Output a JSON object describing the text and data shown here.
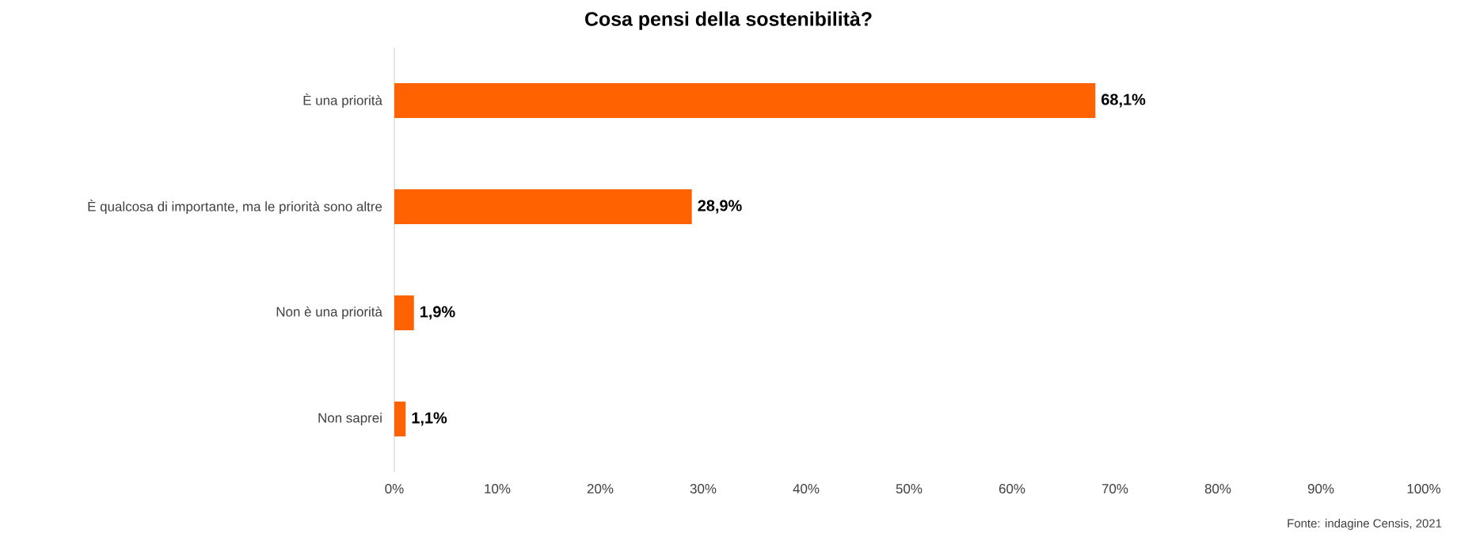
{
  "chart_data": {
    "type": "bar",
    "orientation": "horizontal",
    "title": "Cosa pensi della sostenibilità?",
    "categories": [
      "È una priorità",
      "È qualcosa di importante, ma le priorità sono altre",
      "Non è una priorità",
      "Non saprei"
    ],
    "values": [
      68.1,
      28.9,
      1.9,
      1.1
    ],
    "value_labels": [
      "68,1%",
      "28,9%",
      "1,9%",
      "1,1%"
    ],
    "color": "#ff6200",
    "xlim": [
      0,
      100
    ],
    "xticks": [
      {
        "value": 0,
        "label": "0%"
      },
      {
        "value": 10,
        "label": "10%"
      },
      {
        "value": 20,
        "label": "20%"
      },
      {
        "value": 30,
        "label": "30%"
      },
      {
        "value": 40,
        "label": "40%"
      },
      {
        "value": 50,
        "label": "50%"
      },
      {
        "value": 60,
        "label": "60%"
      },
      {
        "value": 70,
        "label": "70%"
      },
      {
        "value": 80,
        "label": "80%"
      },
      {
        "value": 90,
        "label": "90%"
      },
      {
        "value": 100,
        "label": "100%"
      }
    ],
    "grid": false,
    "annotations": [
      "Fonte: indagine Censis, 2021"
    ]
  }
}
